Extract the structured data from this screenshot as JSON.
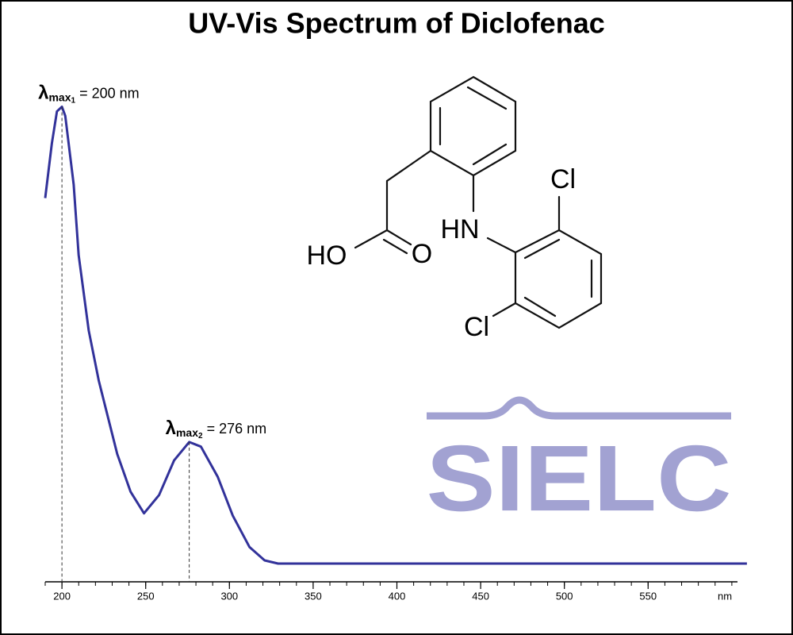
{
  "chart_data": {
    "type": "line",
    "title": "UV-Vis Spectrum of Diclofenac",
    "x": [
      190,
      194,
      197,
      200,
      202,
      207,
      210,
      216,
      222,
      233,
      241,
      249,
      258,
      267,
      276,
      283,
      293,
      302,
      312,
      321,
      329,
      400,
      500,
      609
    ],
    "values": [
      0.8,
      0.92,
      0.99,
      1.0,
      0.98,
      0.83,
      0.675,
      0.51,
      0.4,
      0.24,
      0.157,
      0.11,
      0.15,
      0.226,
      0.266,
      0.256,
      0.19,
      0.105,
      0.036,
      0.007,
      0,
      0,
      0,
      0
    ],
    "color": "#32329a",
    "xlim": [
      190,
      610
    ],
    "ylim": [
      -0.04,
      1.06
    ],
    "xticks": [
      200,
      250,
      300,
      350,
      400,
      450,
      500,
      550
    ],
    "xminorticks": [
      190,
      200,
      210,
      220,
      230,
      240,
      250,
      260,
      270,
      280,
      290,
      300,
      310,
      320,
      330,
      340,
      350,
      360,
      370,
      380,
      390,
      400,
      410,
      420,
      430,
      440,
      450,
      460,
      470,
      480,
      490,
      500,
      510,
      520,
      530,
      540,
      550,
      560,
      570,
      580,
      590,
      600
    ],
    "xlabel": "nm",
    "annotations": [
      {
        "symbol": "λ",
        "subscript": "max",
        "index": "1",
        "text": " = 200 nm",
        "x": 200,
        "y": 1.0
      },
      {
        "symbol": "λ",
        "subscript": "max",
        "index": "2",
        "text": " = 276 nm",
        "x": 276,
        "y": 0.266
      }
    ],
    "structure_labels": [
      "Cl",
      "HN",
      "HO",
      "O",
      "Cl"
    ],
    "logo": "SIELC"
  }
}
